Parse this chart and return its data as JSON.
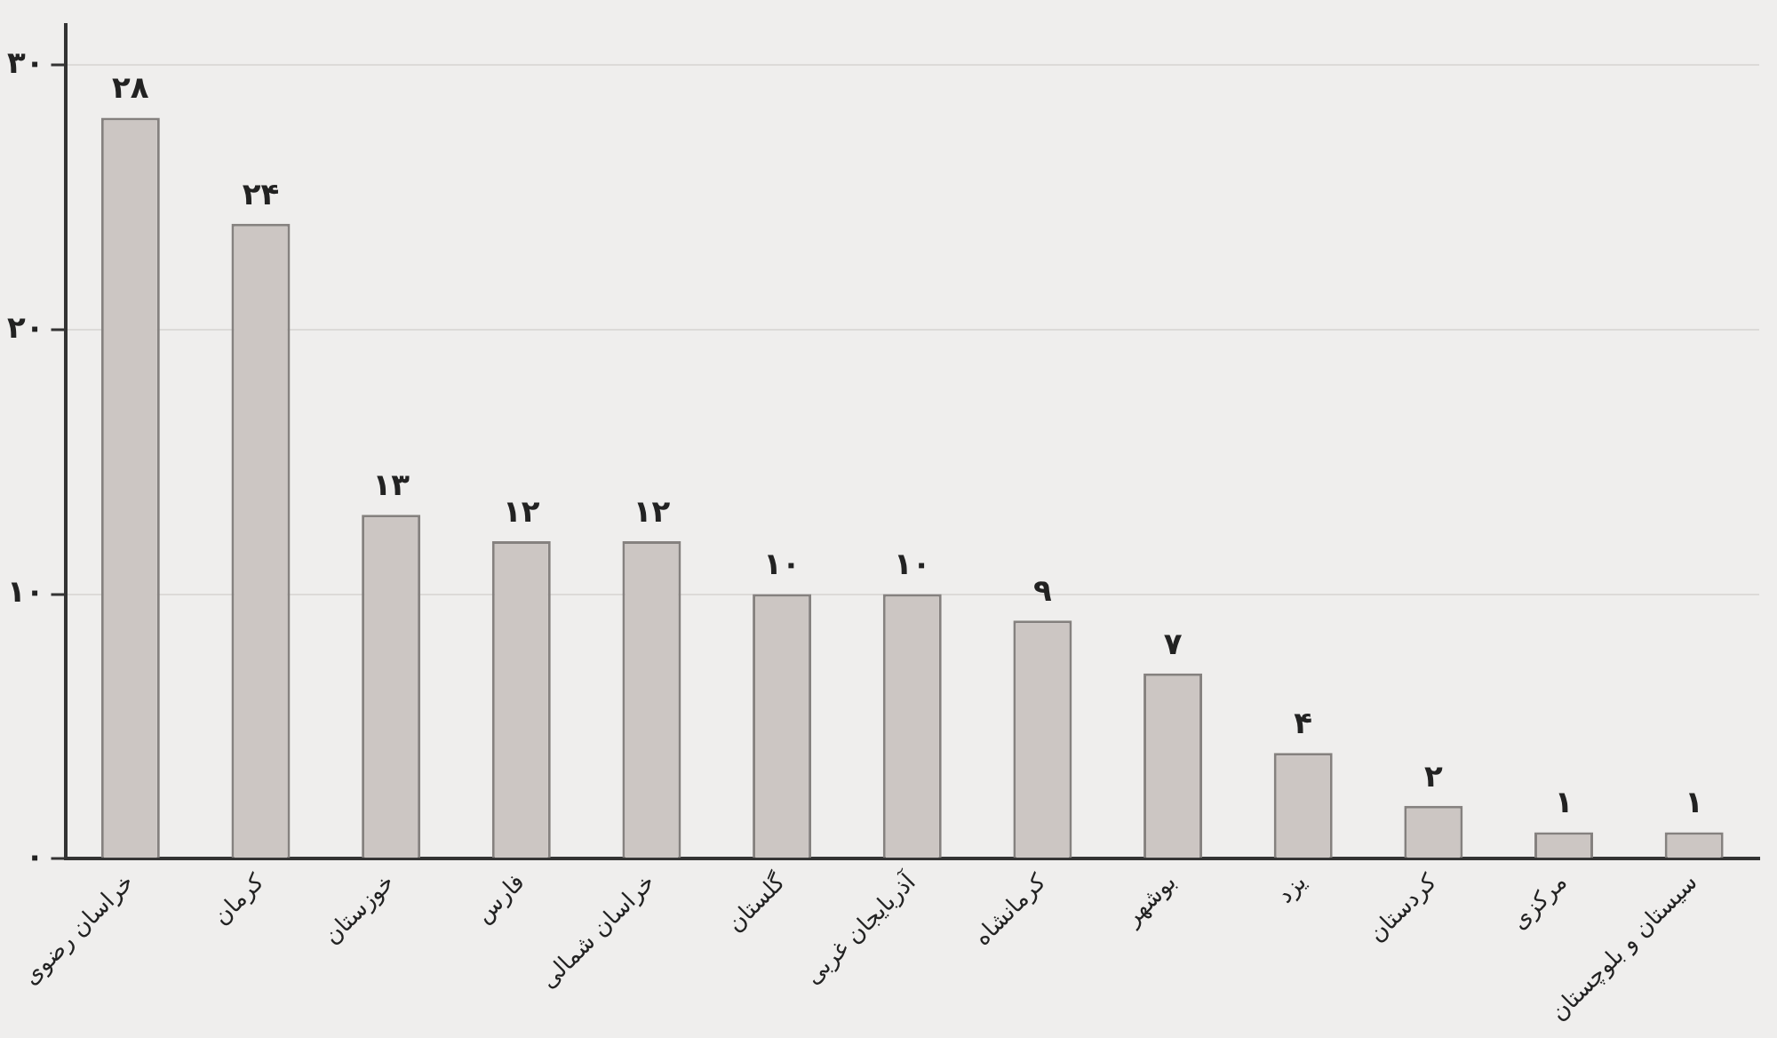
{
  "chart_data": {
    "type": "bar",
    "categories": [
      "خراسان رضوی",
      "کرمان",
      "خوزستان",
      "فارس",
      "خراسان شمالی",
      "گلستان",
      "آذربایجان غربی",
      "کرمانشاه",
      "بوشهر",
      "یزد",
      "کردستان",
      "مرکزی",
      "سیستان و بلوچستان"
    ],
    "values": [
      28,
      24,
      13,
      12,
      12,
      10,
      10,
      9,
      7,
      4,
      2,
      1,
      1
    ],
    "value_labels": [
      "۲۸",
      "۲۴",
      "۱۳",
      "۱۲",
      "۱۲",
      "۱۰",
      "۱۰",
      "۹",
      "۷",
      "۴",
      "۲",
      "۱",
      "۱"
    ],
    "color": "#ccc6c3",
    "ylim": [
      0,
      31.5
    ],
    "yticks": [
      {
        "value": 0,
        "label": "۰"
      },
      {
        "value": 10,
        "label": "۱۰"
      },
      {
        "value": 20,
        "label": "۲۰"
      },
      {
        "value": 30,
        "label": "۳۰"
      }
    ],
    "grid": "y",
    "legend": false
  }
}
